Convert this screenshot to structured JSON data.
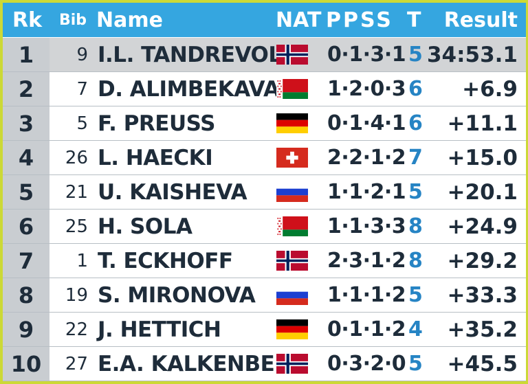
{
  "header": {
    "rank": "Rk",
    "bib": "Bib",
    "name": "Name",
    "nat": "NAT",
    "shooting": "PPSS",
    "total": "T",
    "result": "Result"
  },
  "colors": {
    "frame": "#ccd936",
    "header": "#35a6e0",
    "text": "#1e2c3a",
    "total_misses": "#2684c4",
    "rank_cell": "#c9cdd1"
  },
  "rows": [
    {
      "rank": "1",
      "bib": "9",
      "name": "I.L. TANDREVOLD",
      "nat": "NOR",
      "shooting": "0·1·3·1",
      "total": "5",
      "result": "34:53.1"
    },
    {
      "rank": "2",
      "bib": "7",
      "name": "D. ALIMBEKAVA",
      "nat": "BLR",
      "shooting": "1·2·0·3",
      "total": "6",
      "result": "+6.9"
    },
    {
      "rank": "3",
      "bib": "5",
      "name": "F. PREUSS",
      "nat": "GER",
      "shooting": "0·1·4·1",
      "total": "6",
      "result": "+11.1"
    },
    {
      "rank": "4",
      "bib": "26",
      "name": "L. HAECKI",
      "nat": "SUI",
      "shooting": "2·2·1·2",
      "total": "7",
      "result": "+15.0"
    },
    {
      "rank": "5",
      "bib": "21",
      "name": "U. KAISHEVA",
      "nat": "RUS",
      "shooting": "1·1·2·1",
      "total": "5",
      "result": "+20.1"
    },
    {
      "rank": "6",
      "bib": "25",
      "name": "H. SOLA",
      "nat": "BLR",
      "shooting": "1·1·3·3",
      "total": "8",
      "result": "+24.9"
    },
    {
      "rank": "7",
      "bib": "1",
      "name": "T. ECKHOFF",
      "nat": "NOR",
      "shooting": "2·3·1·2",
      "total": "8",
      "result": "+29.2"
    },
    {
      "rank": "8",
      "bib": "19",
      "name": "S. MIRONOVA",
      "nat": "RUS",
      "shooting": "1·1·1·2",
      "total": "5",
      "result": "+33.3"
    },
    {
      "rank": "9",
      "bib": "22",
      "name": "J. HETTICH",
      "nat": "GER",
      "shooting": "0·1·1·2",
      "total": "4",
      "result": "+35.2"
    },
    {
      "rank": "10",
      "bib": "27",
      "name": "E.A. KALKENBERG",
      "nat": "NOR",
      "shooting": "0·3·2·0",
      "total": "5",
      "result": "+45.5"
    }
  ]
}
